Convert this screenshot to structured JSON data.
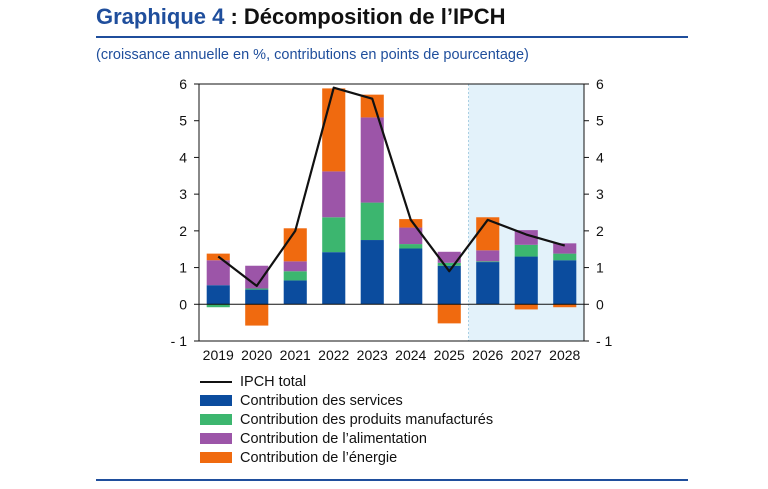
{
  "header": {
    "label": "Graphique 4",
    "separator": " : ",
    "text": "Décomposition de l’IPCH",
    "subtitle": "(croissance annuelle en %, contributions en points de pourcentage)"
  },
  "colors": {
    "accent": "#1f4e9c",
    "services": "#0b4c9e",
    "manufactures": "#3cb66f",
    "alimentation": "#9c55a8",
    "energie": "#f06a0f",
    "total": "#111111",
    "projection_shade": "#e3f2fa"
  },
  "chart_data": {
    "type": "bar",
    "stacked": true,
    "categories": [
      "2019",
      "2020",
      "2021",
      "2022",
      "2023",
      "2024",
      "2025",
      "2026",
      "2027",
      "2028"
    ],
    "projection_shaded_from": "2026",
    "ylim": [
      -1,
      6
    ],
    "yticks": [
      6,
      5,
      4,
      3,
      2,
      1,
      0,
      -1
    ],
    "ytick_labels": [
      "6",
      "5",
      "4",
      "3",
      "2",
      "1",
      "0",
      "- 1"
    ],
    "series": [
      {
        "name": "Contribution des services",
        "key": "services",
        "values": [
          0.52,
          0.4,
          0.65,
          1.42,
          1.75,
          1.52,
          1.05,
          1.15,
          1.3,
          1.2
        ]
      },
      {
        "name": "Contribution des produits manufacturés",
        "key": "manufactures",
        "values": [
          -0.08,
          0.03,
          0.25,
          0.95,
          1.02,
          0.12,
          0.08,
          0.02,
          0.32,
          0.18
        ]
      },
      {
        "name": "Contribution de l’alimentation",
        "key": "alimentation",
        "values": [
          0.68,
          0.62,
          0.27,
          1.25,
          2.32,
          0.45,
          0.3,
          0.3,
          0.4,
          0.28
        ]
      },
      {
        "name": "Contribution de l’énergie",
        "key": "energie",
        "values": [
          0.18,
          -0.58,
          0.9,
          2.26,
          0.62,
          0.23,
          -0.52,
          0.9,
          -0.14,
          -0.08
        ]
      }
    ],
    "line": {
      "name": "IPCH total",
      "values": [
        1.3,
        0.5,
        2.0,
        5.9,
        5.6,
        2.3,
        0.9,
        2.3,
        1.9,
        1.6
      ]
    }
  }
}
